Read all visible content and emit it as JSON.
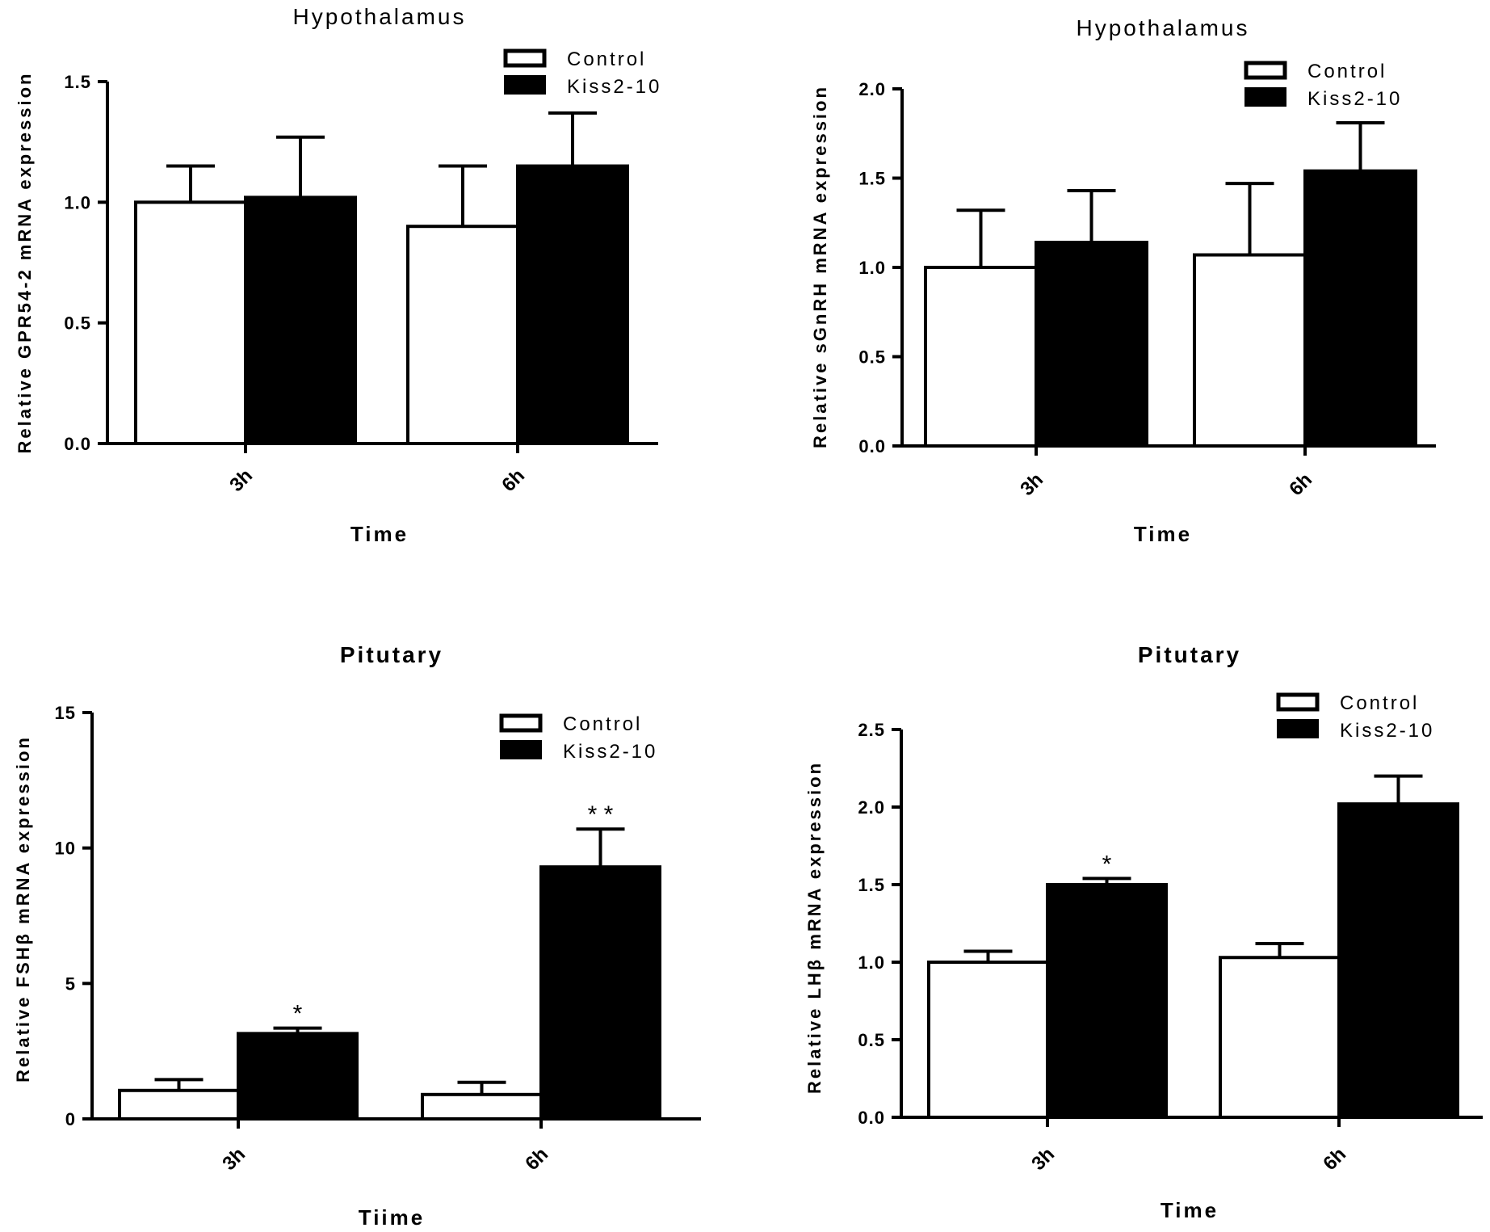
{
  "figure": {
    "legend": {
      "control": "Control",
      "treatment": "Kiss2-10"
    },
    "colors": {
      "control_fill": "#ffffff",
      "treatment_fill": "#000000",
      "stroke": "#000000"
    }
  },
  "chart_data": [
    {
      "type": "bar",
      "title": "Hypothalamus",
      "xlabel": "Time",
      "ylabel": "Relative GPR54-2 mRNA expression",
      "categories": [
        "3h",
        "6h"
      ],
      "ylim": [
        0,
        1.5
      ],
      "yticks": [
        "0.0",
        "0.5",
        "1.0",
        "1.5"
      ],
      "series": [
        {
          "name": "Control",
          "values": [
            1.0,
            0.9
          ],
          "errors": [
            0.15,
            0.25
          ],
          "labels": [
            "",
            ""
          ]
        },
        {
          "name": "Kiss2-10",
          "values": [
            1.02,
            1.15
          ],
          "errors": [
            0.25,
            0.22
          ],
          "labels": [
            "",
            ""
          ]
        }
      ]
    },
    {
      "type": "bar",
      "title": "Hypothalamus",
      "xlabel": "Time",
      "ylabel": "Relative sGnRH mRNA expression",
      "categories": [
        "3h",
        "6h"
      ],
      "ylim": [
        0,
        2.0
      ],
      "yticks": [
        "0.0",
        "0.5",
        "1.0",
        "1.5",
        "2.0"
      ],
      "series": [
        {
          "name": "Control",
          "values": [
            1.0,
            1.07
          ],
          "errors": [
            0.32,
            0.4
          ],
          "labels": [
            "",
            ""
          ]
        },
        {
          "name": "Kiss2-10",
          "values": [
            1.14,
            1.54
          ],
          "errors": [
            0.29,
            0.27
          ],
          "labels": [
            "",
            ""
          ]
        }
      ]
    },
    {
      "type": "bar",
      "title": "Pitutary",
      "xlabel": "Tiime",
      "ylabel": "Relative FSHβ mRNA expression",
      "categories": [
        "3h",
        "6h"
      ],
      "ylim": [
        0,
        15
      ],
      "yticks": [
        "0",
        "5",
        "10",
        "15"
      ],
      "series": [
        {
          "name": "Control",
          "values": [
            1.05,
            0.9
          ],
          "errors": [
            0.4,
            0.45
          ],
          "labels": [
            "",
            ""
          ]
        },
        {
          "name": "Kiss2-10",
          "values": [
            3.15,
            9.3
          ],
          "errors": [
            0.2,
            1.4
          ],
          "labels": [
            "*",
            "* *"
          ]
        }
      ]
    },
    {
      "type": "bar",
      "title": "Pitutary",
      "xlabel": "Time",
      "ylabel": "Relative LHβ mRNA expression",
      "categories": [
        "3h",
        "6h"
      ],
      "ylim": [
        0,
        2.5
      ],
      "yticks": [
        "0.0",
        "0.5",
        "1.0",
        "1.5",
        "2.0",
        "2.5"
      ],
      "series": [
        {
          "name": "Control",
          "values": [
            1.0,
            1.03
          ],
          "errors": [
            0.07,
            0.09
          ],
          "labels": [
            "",
            ""
          ]
        },
        {
          "name": "Kiss2-10",
          "values": [
            1.5,
            2.02
          ],
          "errors": [
            0.04,
            0.18
          ],
          "labels": [
            "*",
            ""
          ]
        }
      ]
    }
  ]
}
